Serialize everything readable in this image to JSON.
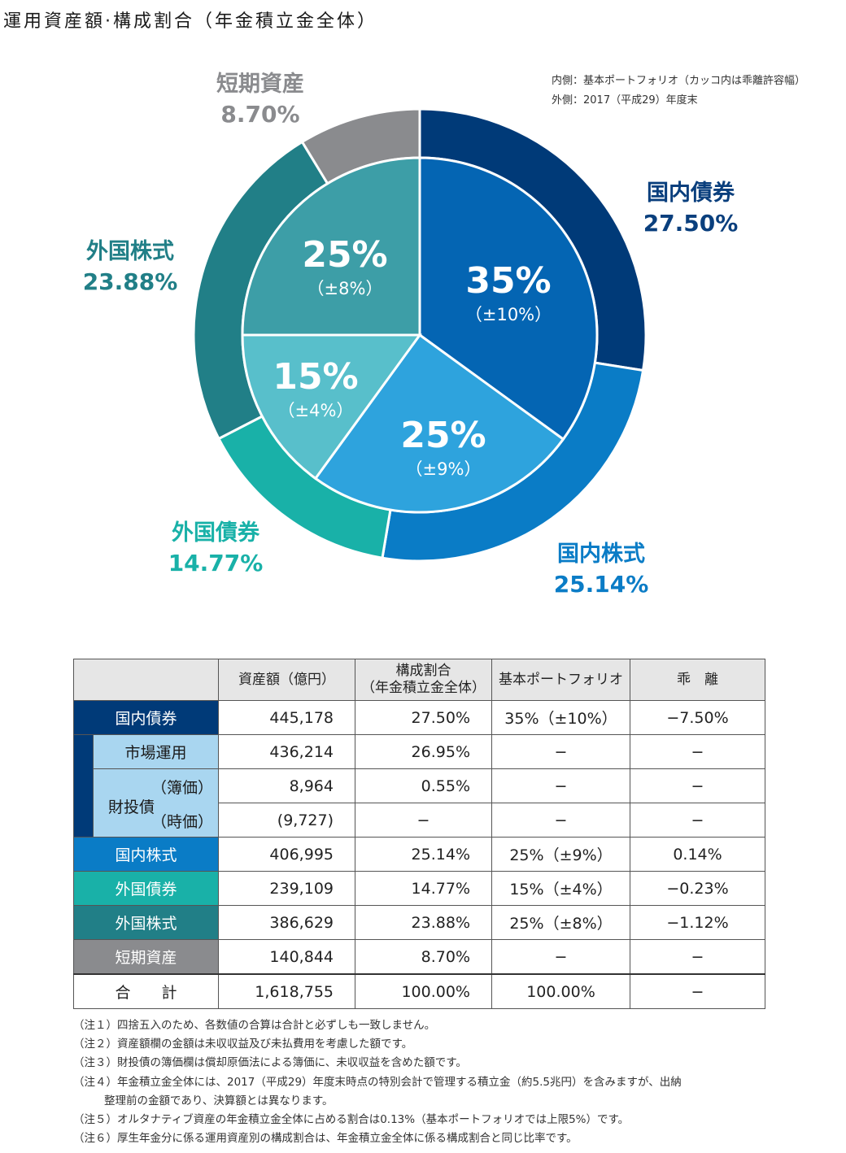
{
  "title": "運用資産額·構成割合（年金積立金全体）",
  "legend": {
    "inner": "内側：基本ポートフォリオ（カッコ内は乖離許容幅）",
    "outer": "外側：2017（平成29）年度末"
  },
  "chart_data": {
    "type": "pie",
    "outer": {
      "labels": [
        "国内債券",
        "国内株式",
        "外国債券",
        "外国株式",
        "短期資産"
      ],
      "values": [
        27.5,
        25.14,
        14.77,
        23.88,
        8.7
      ],
      "value_labels": [
        "27.50%",
        "25.14%",
        "14.77%",
        "23.88%",
        "8.70%"
      ],
      "colors": [
        "#003a78",
        "#0a7cc6",
        "#19b1a8",
        "#217f87",
        "#8a8b8e"
      ]
    },
    "inner": {
      "labels": [
        "国内債券",
        "国内株式",
        "外国債券",
        "外国株式"
      ],
      "values": [
        35,
        25,
        15,
        25
      ],
      "value_labels": [
        "35%",
        "25%",
        "15%",
        "25%"
      ],
      "range_labels": [
        "（±10%）",
        "（±9%）",
        "（±4%）",
        "（±8%）"
      ],
      "colors": [
        "#0465b3",
        "#2ea3dd",
        "#58bfcb",
        "#3d9ea7"
      ]
    }
  },
  "table": {
    "headers": {
      "amount": "資産額（億円）",
      "ratio_line1": "構成割合",
      "ratio_line2": "（年金積立金全体）",
      "portfolio": "基本ポートフォリオ",
      "deviation": "乖　離"
    },
    "rows": {
      "domestic_bonds": {
        "label": "国内債券",
        "amount": "445,178",
        "ratio": "27.50%",
        "portfolio": "35%（±10%）",
        "deviation": "−7.50%"
      },
      "market": {
        "label": "市場運用",
        "amount": "436,214",
        "ratio": "26.95%",
        "portfolio": "−",
        "deviation": "−"
      },
      "filp": {
        "label": "財投債"
      },
      "filp_book": {
        "label": "（簿価）",
        "amount": "8,964",
        "ratio": "0.55%",
        "portfolio": "−",
        "deviation": "−"
      },
      "filp_market": {
        "label": "（時価）",
        "amount": "(9,727)",
        "ratio": "−",
        "portfolio": "−",
        "deviation": "−"
      },
      "domestic_stocks": {
        "label": "国内株式",
        "amount": "406,995",
        "ratio": "25.14%",
        "portfolio": "25%（±9%）",
        "deviation": "0.14%"
      },
      "foreign_bonds": {
        "label": "外国債券",
        "amount": "239,109",
        "ratio": "14.77%",
        "portfolio": "15%（±4%）",
        "deviation": "−0.23%"
      },
      "foreign_stocks": {
        "label": "外国株式",
        "amount": "386,629",
        "ratio": "23.88%",
        "portfolio": "25%（±8%）",
        "deviation": "−1.12%"
      },
      "short_term": {
        "label": "短期資産",
        "amount": "140,844",
        "ratio": "8.70%",
        "portfolio": "−",
        "deviation": "−"
      },
      "total": {
        "label": "合　　計",
        "amount": "1,618,755",
        "ratio": "100.00%",
        "portfolio": "100.00%",
        "deviation": "−"
      }
    }
  },
  "notes": [
    "（注１）四捨五入のため、各数値の合算は合計と必ずしも一致しません。",
    "（注２）資産額欄の金額は未収収益及び未払費用を考慮した額です。",
    "（注３）財投債の簿価欄は償却原価法による簿価に、未収収益を含めた額です。",
    "（注４）年金積立金全体には、2017（平成29）年度末時点の特別会計で管理する積立金（約5.5兆円）を含みますが、出納",
    "整理前の金額であり、決算額とは異なります。",
    "（注５）オルタナティブ資産の年金積立金全体に占める割合は0.13%（基本ポートフォリオでは上限5%）です。",
    "（注６）厚生年金分に係る運用資産別の構成割合は、年金積立金全体に係る構成割合と同じ比率です。"
  ]
}
